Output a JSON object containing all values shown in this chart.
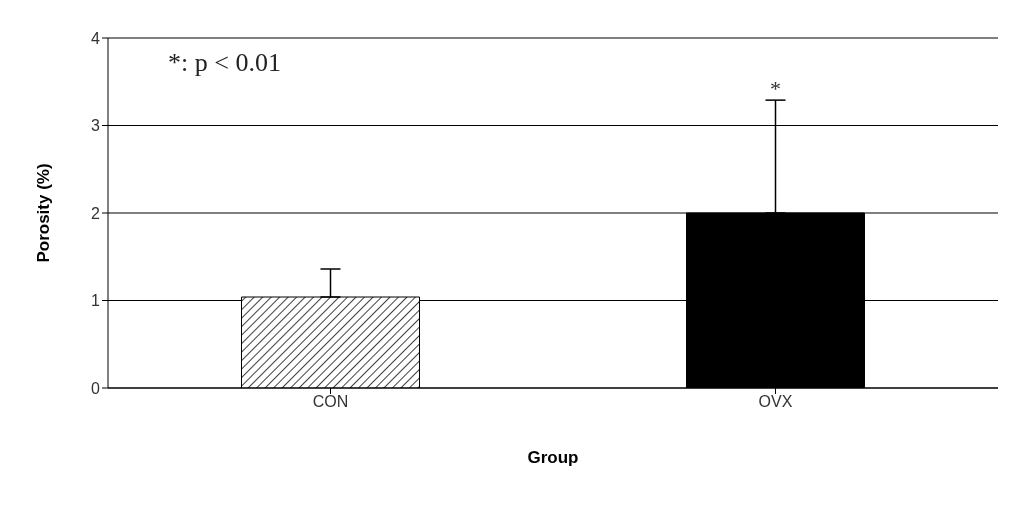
{
  "chart_data": {
    "type": "bar",
    "xlabel": "Group",
    "ylabel": "Porosity (%)",
    "categories": [
      "CON",
      "OVX"
    ],
    "values": [
      1.04,
      2.0
    ],
    "errors": [
      [
        1.04,
        1.36
      ],
      [
        2.0,
        3.29
      ]
    ],
    "colors": [
      "#000000",
      "#000000"
    ],
    "ylim": [
      0,
      4
    ],
    "yticks": [
      0,
      1,
      2,
      3,
      4
    ],
    "grid": "y",
    "annotations": [
      "*: p < 0.01",
      {
        "text": "*",
        "x": "OVX",
        "y": 3.29
      }
    ]
  }
}
